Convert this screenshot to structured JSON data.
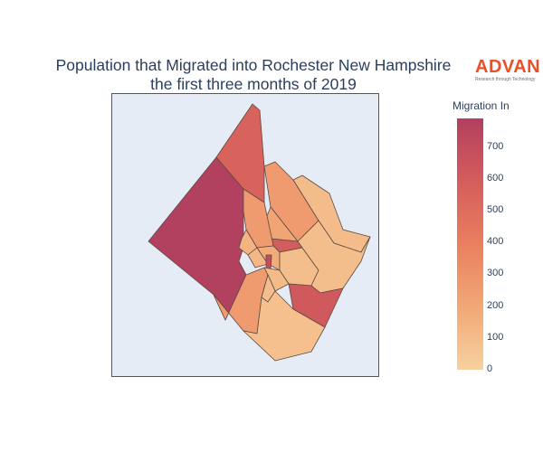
{
  "title": {
    "line1": "Population that Migrated into Rochester New Hampshire",
    "line2": "the first three months of 2019"
  },
  "logo": {
    "wordmark": "ADVAN",
    "tagline": "Research through Technology",
    "color": "#e8502a"
  },
  "colorbar": {
    "title": "Migration In",
    "ticks": [
      "0",
      "100",
      "200",
      "300",
      "400",
      "500",
      "600",
      "700"
    ],
    "colorscale": [
      "#f7d19f",
      "#f1a876",
      "#ea7f5f",
      "#d45d5c",
      "#b2405f"
    ],
    "range": [
      0,
      790
    ]
  },
  "map": {
    "background": "#e5ecf6",
    "border_color": "#555555",
    "regions": [
      {
        "name": "west",
        "value": 790
      },
      {
        "name": "north-strip",
        "value": 560
      },
      {
        "name": "north-east",
        "value": 260
      },
      {
        "name": "east-small",
        "value": 210
      },
      {
        "name": "far-east",
        "value": 100
      },
      {
        "name": "center-red",
        "value": 600
      },
      {
        "name": "center-left",
        "value": 260
      },
      {
        "name": "center-small-1",
        "value": 140
      },
      {
        "name": "center-small-2",
        "value": 120
      },
      {
        "name": "center-small-3",
        "value": 180
      },
      {
        "name": "center-small-4",
        "value": 90
      },
      {
        "name": "downtown-dark",
        "value": 700
      },
      {
        "name": "south-east-big",
        "value": 90
      },
      {
        "name": "south-west",
        "value": 260
      },
      {
        "name": "south-small",
        "value": 110
      },
      {
        "name": "south-east-red",
        "value": 620
      },
      {
        "name": "south",
        "value": 80
      },
      {
        "name": "east-lower",
        "value": 90
      }
    ]
  }
}
